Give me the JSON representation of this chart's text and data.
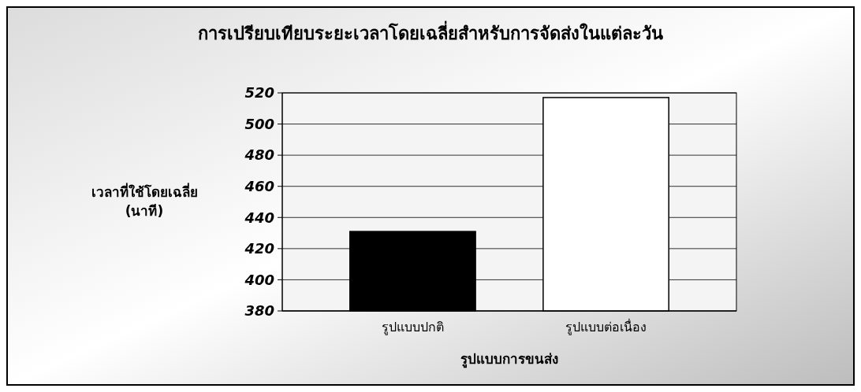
{
  "chart_data": {
    "type": "bar",
    "title": "การเปรียบเทียบระยะเวลาโดยเฉลี่ยสำหรับการจัดส่งในแต่ละวัน",
    "xlabel": "รูปแบบการขนส่ง",
    "ylabel": "เวลาที่ใช้โดยเฉลี่ย\n(นาที)",
    "categories": [
      "รูปแบบปกติ",
      "รูปแบบต่อเนื่อง"
    ],
    "values": [
      431,
      517
    ],
    "colors": [
      "#000000",
      "#ffffff"
    ],
    "ylim": [
      380,
      520
    ],
    "yticks": [
      380,
      400,
      420,
      440,
      460,
      480,
      500,
      520
    ],
    "grid": "y"
  }
}
